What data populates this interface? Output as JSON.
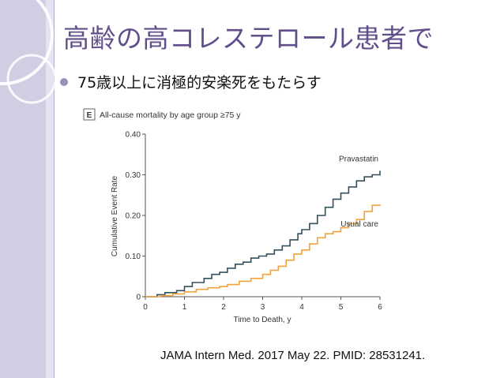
{
  "slide": {
    "title": "高齢の高コレステロール患者で",
    "bullet": "75歳以上に消極的安楽死をもたらす",
    "citation": "JAMA Intern Med. 2017 May 22. PMID: 28531241."
  },
  "colors": {
    "title": "#614f8c",
    "accent_band": "#d3cde4",
    "pravastatin": "#33505f",
    "usual_care": "#f2a33a"
  },
  "chart_data": {
    "type": "line",
    "panel_label": "E",
    "title": "All-cause mortality by age group ≥75 y",
    "xlabel": "Time to Death, y",
    "ylabel": "Cumulative Event Rate",
    "xlim": [
      0,
      6
    ],
    "ylim": [
      0,
      0.4
    ],
    "x_ticks": [
      "0",
      "1",
      "2",
      "3",
      "4",
      "5",
      "6"
    ],
    "y_ticks": [
      "0",
      "0.10",
      "0.20",
      "0.30",
      "0.40"
    ],
    "grid": false,
    "series": [
      {
        "name": "Pravastatin",
        "color": "#33505f",
        "x": [
          0,
          0.3,
          0.5,
          0.8,
          1.0,
          1.2,
          1.5,
          1.7,
          1.9,
          2.1,
          2.3,
          2.5,
          2.7,
          2.9,
          3.1,
          3.3,
          3.5,
          3.7,
          3.9,
          4.0,
          4.2,
          4.4,
          4.6,
          4.8,
          5.0,
          5.2,
          5.4,
          5.6,
          5.8,
          6.0
        ],
        "y": [
          0,
          0.005,
          0.01,
          0.015,
          0.025,
          0.035,
          0.045,
          0.055,
          0.06,
          0.07,
          0.08,
          0.085,
          0.095,
          0.1,
          0.105,
          0.115,
          0.125,
          0.14,
          0.155,
          0.165,
          0.18,
          0.2,
          0.22,
          0.24,
          0.255,
          0.27,
          0.285,
          0.295,
          0.3,
          0.31
        ]
      },
      {
        "name": "Usual care",
        "color": "#f2a33a",
        "x": [
          0,
          0.4,
          0.7,
          1.0,
          1.3,
          1.6,
          1.9,
          2.1,
          2.4,
          2.7,
          3.0,
          3.2,
          3.4,
          3.6,
          3.8,
          4.0,
          4.2,
          4.4,
          4.6,
          4.8,
          5.0,
          5.2,
          5.4,
          5.6,
          5.8,
          6.0
        ],
        "y": [
          0,
          0.003,
          0.007,
          0.012,
          0.018,
          0.022,
          0.025,
          0.03,
          0.038,
          0.045,
          0.055,
          0.065,
          0.075,
          0.09,
          0.105,
          0.115,
          0.13,
          0.145,
          0.155,
          0.16,
          0.17,
          0.18,
          0.19,
          0.21,
          0.225,
          0.227
        ]
      }
    ]
  }
}
